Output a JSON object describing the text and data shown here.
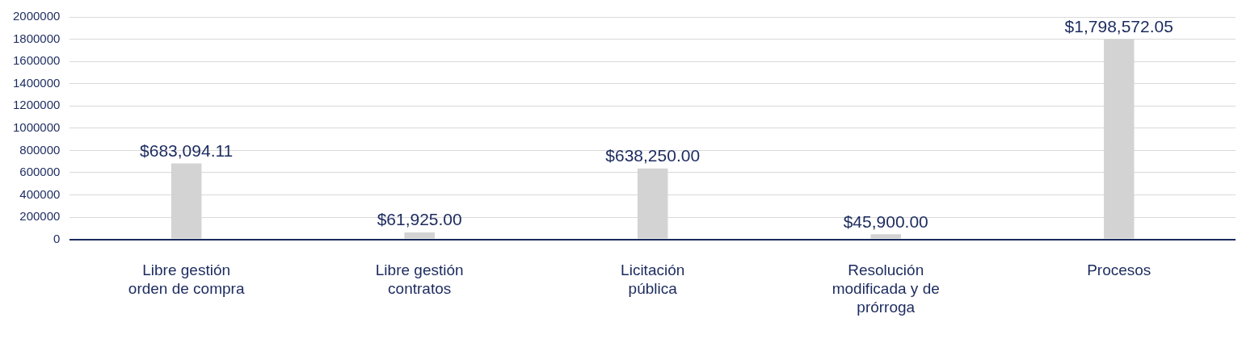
{
  "chart_data": {
    "type": "bar",
    "categories": [
      "Libre gestión orden de compra",
      "Libre gestión contratos",
      "Licitación pública",
      "Resolución modificada y de prórroga",
      "Procesos"
    ],
    "values": [
      683094.11,
      61925.0,
      638250.0,
      45900.0,
      1798572.05
    ],
    "value_labels": [
      "$683,094.11",
      "$61,925.00",
      "$638,250.00",
      "$45,900.00",
      "$1,798,572.05"
    ],
    "color": "#d3d3d3",
    "ylim": [
      0,
      2000000
    ],
    "yticks": [
      0,
      200000,
      400000,
      600000,
      800000,
      1000000,
      1200000,
      1400000,
      1600000,
      1800000,
      2000000
    ],
    "grid": "y",
    "legend": false
  }
}
